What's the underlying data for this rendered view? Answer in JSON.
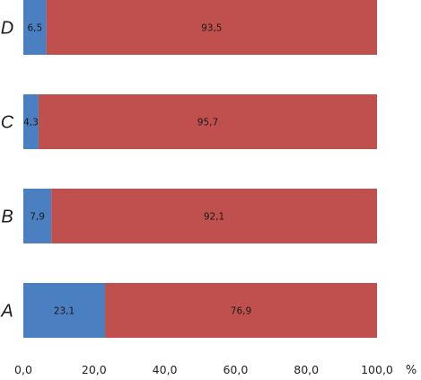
{
  "chart_data": {
    "type": "bar",
    "orientation": "horizontal",
    "stacked": true,
    "categories": [
      "A",
      "B",
      "C",
      "D"
    ],
    "series": [
      {
        "values": [
          23.1,
          7.9,
          4.3,
          6.5
        ],
        "labels": [
          "23,1",
          "7,9",
          "4,3",
          "6,5"
        ],
        "color": "#4a7fc1"
      },
      {
        "values": [
          76.9,
          92.1,
          95.7,
          93.5
        ],
        "labels": [
          "76,9",
          "92,1",
          "95,7",
          "93,5"
        ],
        "color": "#c0504d"
      }
    ],
    "xlim": [
      0,
      100
    ],
    "xticks": [
      0,
      20,
      40,
      60,
      80,
      100
    ],
    "xtick_labels": [
      "0,0",
      "20,0",
      "40,0",
      "60,0",
      "80,0",
      "100,0"
    ],
    "xunit": "%",
    "grid": false,
    "legend": "none"
  }
}
